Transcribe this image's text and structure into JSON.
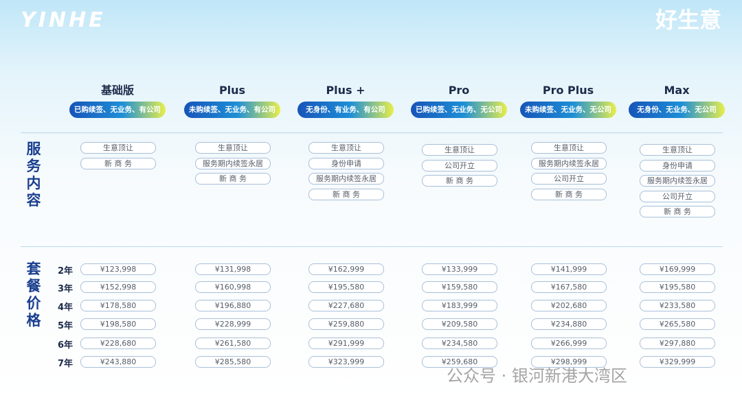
{
  "header": {
    "logo": "YINHE",
    "slogan": "好生意"
  },
  "sections": [
    "服务内容",
    "套餐价格"
  ],
  "years": [
    "2年",
    "3年",
    "4年",
    "5年",
    "6年",
    "7年"
  ],
  "plans": [
    {
      "name": "基础版",
      "tag": "已购续签、无业务、有公司",
      "services": [
        "生意顶让",
        "新 商 务"
      ],
      "prices": [
        "¥123,998",
        "¥152,998",
        "¥178,580",
        "¥198,580",
        "¥228,680",
        "¥243,880"
      ]
    },
    {
      "name": "Plus",
      "tag": "未购续签、无业务、有公司",
      "services": [
        "生意顶让",
        "服务期内续签永居",
        "新 商 务"
      ],
      "prices": [
        "¥131,998",
        "¥160,998",
        "¥196,880",
        "¥228,999",
        "¥261,580",
        "¥285,580"
      ]
    },
    {
      "name": "Plus +",
      "tag": "无身份、有业务、有公司",
      "services": [
        "生意顶让",
        "身份申请",
        "服务期内续签永居",
        "新 商 务"
      ],
      "prices": [
        "¥162,999",
        "¥195,580",
        "¥227,680",
        "¥259,880",
        "¥291,999",
        "¥323,999"
      ]
    },
    {
      "name": "Pro",
      "tag": "已购续签、无业务、无公司",
      "services": [
        "生意顶让",
        "公司开立",
        "新 商 务"
      ],
      "prices": [
        "¥133,999",
        "¥159,580",
        "¥183,999",
        "¥209,580",
        "¥234,580",
        "¥259,680"
      ]
    },
    {
      "name": "Pro Plus",
      "tag": "未购续签、无业务、无公司",
      "services": [
        "生意顶让",
        "服务期内续签永居",
        "公司开立",
        "新 商 务"
      ],
      "prices": [
        "¥141,999",
        "¥167,580",
        "¥202,680",
        "¥234,880",
        "¥266,999",
        "¥298,999"
      ]
    },
    {
      "name": "Max",
      "tag": "无身份、无业务、无公司",
      "services": [
        "生意顶让",
        "身份申请",
        "服务期内续签永居",
        "公司开立",
        "新 商 务"
      ],
      "prices": [
        "¥169,999",
        "¥195,580",
        "¥233,580",
        "¥265,580",
        "¥297,880",
        "¥329,999"
      ]
    }
  ],
  "watermark": "公众号 · 银河新港大湾区"
}
